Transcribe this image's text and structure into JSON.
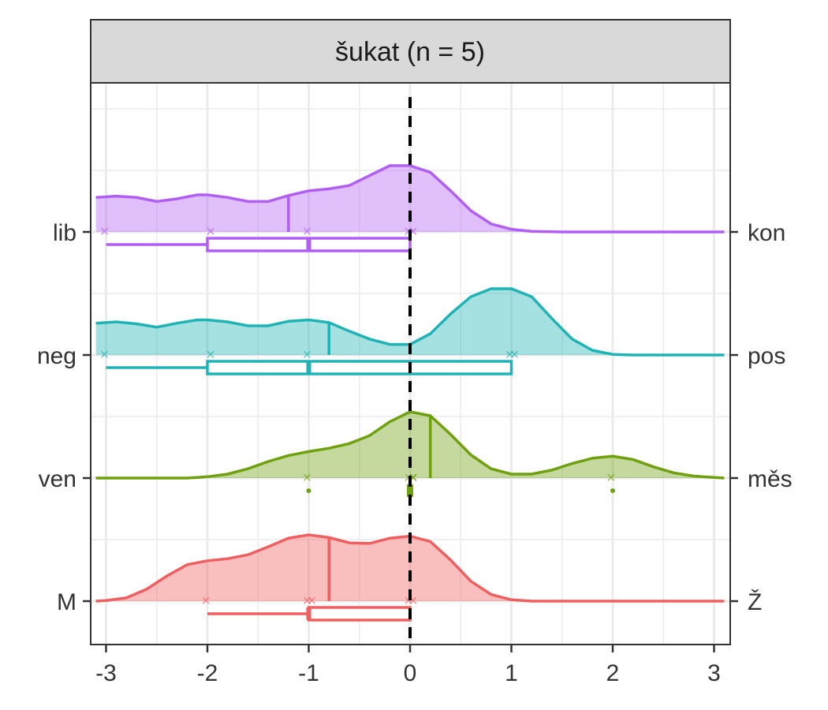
{
  "chart_data": {
    "type": "ridgeline",
    "panel_title": "šukat (n = 5)",
    "x_ticks": [
      "-3",
      "-2",
      "-1",
      "0",
      "1",
      "2",
      "3"
    ],
    "xlim": [
      -3.1,
      3.1
    ],
    "reference_line_x": 0,
    "grid": true,
    "series": [
      {
        "left_label": "lib",
        "right_label": "kon",
        "color": "#B15EF4",
        "points": [
          -3,
          -2,
          -1,
          0,
          0
        ],
        "median_line": -1.2,
        "box": {
          "min": -3,
          "q1": -2,
          "median": -1,
          "q3": 0,
          "max": 0
        },
        "density": [
          [
            -3.1,
            0.52
          ],
          [
            -2.9,
            0.54
          ],
          [
            -2.7,
            0.52
          ],
          [
            -2.5,
            0.46
          ],
          [
            -2.3,
            0.5
          ],
          [
            -2.1,
            0.56
          ],
          [
            -2.0,
            0.56
          ],
          [
            -1.8,
            0.52
          ],
          [
            -1.6,
            0.46
          ],
          [
            -1.4,
            0.46
          ],
          [
            -1.2,
            0.55
          ],
          [
            -1.0,
            0.62
          ],
          [
            -0.8,
            0.65
          ],
          [
            -0.6,
            0.7
          ],
          [
            -0.4,
            0.85
          ],
          [
            -0.2,
            1.0
          ],
          [
            0.0,
            1.0
          ],
          [
            0.2,
            0.9
          ],
          [
            0.4,
            0.62
          ],
          [
            0.6,
            0.32
          ],
          [
            0.8,
            0.12
          ],
          [
            1.0,
            0.04
          ],
          [
            1.2,
            0.01
          ],
          [
            1.5,
            0
          ],
          [
            3.1,
            0
          ]
        ]
      },
      {
        "left_label": "neg",
        "right_label": "pos",
        "color": "#1FB3B5",
        "points": [
          -3,
          -2,
          -1,
          1,
          1
        ],
        "median_line": -0.8,
        "box": {
          "min": -3,
          "q1": -2,
          "median": -1,
          "q3": 1,
          "max": 1
        },
        "density": [
          [
            -3.1,
            0.48
          ],
          [
            -2.9,
            0.5
          ],
          [
            -2.7,
            0.47
          ],
          [
            -2.5,
            0.42
          ],
          [
            -2.3,
            0.48
          ],
          [
            -2.1,
            0.53
          ],
          [
            -2.0,
            0.53
          ],
          [
            -1.8,
            0.5
          ],
          [
            -1.6,
            0.44
          ],
          [
            -1.4,
            0.44
          ],
          [
            -1.2,
            0.51
          ],
          [
            -1.0,
            0.53
          ],
          [
            -0.8,
            0.49
          ],
          [
            -0.6,
            0.36
          ],
          [
            -0.4,
            0.24
          ],
          [
            -0.2,
            0.16
          ],
          [
            0.0,
            0.16
          ],
          [
            0.2,
            0.32
          ],
          [
            0.4,
            0.62
          ],
          [
            0.6,
            0.88
          ],
          [
            0.8,
            1.0
          ],
          [
            1.0,
            1.0
          ],
          [
            1.2,
            0.88
          ],
          [
            1.4,
            0.55
          ],
          [
            1.6,
            0.24
          ],
          [
            1.8,
            0.07
          ],
          [
            2.0,
            0.01
          ],
          [
            2.2,
            0
          ],
          [
            3.1,
            0
          ]
        ]
      },
      {
        "left_label": "ven",
        "right_label": "měs",
        "color": "#6FA00E",
        "points": [
          -1,
          0,
          0,
          0,
          2
        ],
        "median_line": 0.2,
        "box": {
          "min": -1,
          "q1": 0,
          "median": 0,
          "q3": 0,
          "max": 2
        },
        "density": [
          [
            -3.1,
            0
          ],
          [
            -2.2,
            0
          ],
          [
            -2.0,
            0.02
          ],
          [
            -1.8,
            0.06
          ],
          [
            -1.6,
            0.14
          ],
          [
            -1.4,
            0.25
          ],
          [
            -1.2,
            0.34
          ],
          [
            -1.0,
            0.4
          ],
          [
            -0.8,
            0.45
          ],
          [
            -0.6,
            0.52
          ],
          [
            -0.4,
            0.64
          ],
          [
            -0.2,
            0.85
          ],
          [
            0.0,
            1.0
          ],
          [
            0.2,
            0.94
          ],
          [
            0.4,
            0.66
          ],
          [
            0.6,
            0.35
          ],
          [
            0.8,
            0.14
          ],
          [
            1.0,
            0.06
          ],
          [
            1.2,
            0.06
          ],
          [
            1.4,
            0.12
          ],
          [
            1.6,
            0.22
          ],
          [
            1.8,
            0.3
          ],
          [
            2.0,
            0.33
          ],
          [
            2.2,
            0.28
          ],
          [
            2.4,
            0.17
          ],
          [
            2.6,
            0.08
          ],
          [
            2.8,
            0.03
          ],
          [
            3.1,
            0
          ]
        ]
      },
      {
        "left_label": "M",
        "right_label": "Ž",
        "color": "#EF5F5F",
        "points": [
          -2,
          -1,
          -1,
          0,
          0
        ],
        "median_line": -0.8,
        "box": {
          "min": -2,
          "q1": -1,
          "median": -1,
          "q3": 0,
          "max": 0
        },
        "density": [
          [
            -3.1,
            0
          ],
          [
            -3.0,
            0.01
          ],
          [
            -2.8,
            0.05
          ],
          [
            -2.6,
            0.18
          ],
          [
            -2.4,
            0.38
          ],
          [
            -2.2,
            0.55
          ],
          [
            -2.0,
            0.61
          ],
          [
            -1.8,
            0.64
          ],
          [
            -1.6,
            0.7
          ],
          [
            -1.4,
            0.82
          ],
          [
            -1.2,
            0.95
          ],
          [
            -1.0,
            1.0
          ],
          [
            -0.8,
            0.96
          ],
          [
            -0.6,
            0.88
          ],
          [
            -0.4,
            0.87
          ],
          [
            -0.2,
            0.95
          ],
          [
            0.0,
            0.98
          ],
          [
            0.2,
            0.9
          ],
          [
            0.4,
            0.62
          ],
          [
            0.6,
            0.3
          ],
          [
            0.8,
            0.1
          ],
          [
            1.0,
            0.02
          ],
          [
            1.2,
            0
          ],
          [
            3.1,
            0
          ]
        ]
      }
    ]
  }
}
